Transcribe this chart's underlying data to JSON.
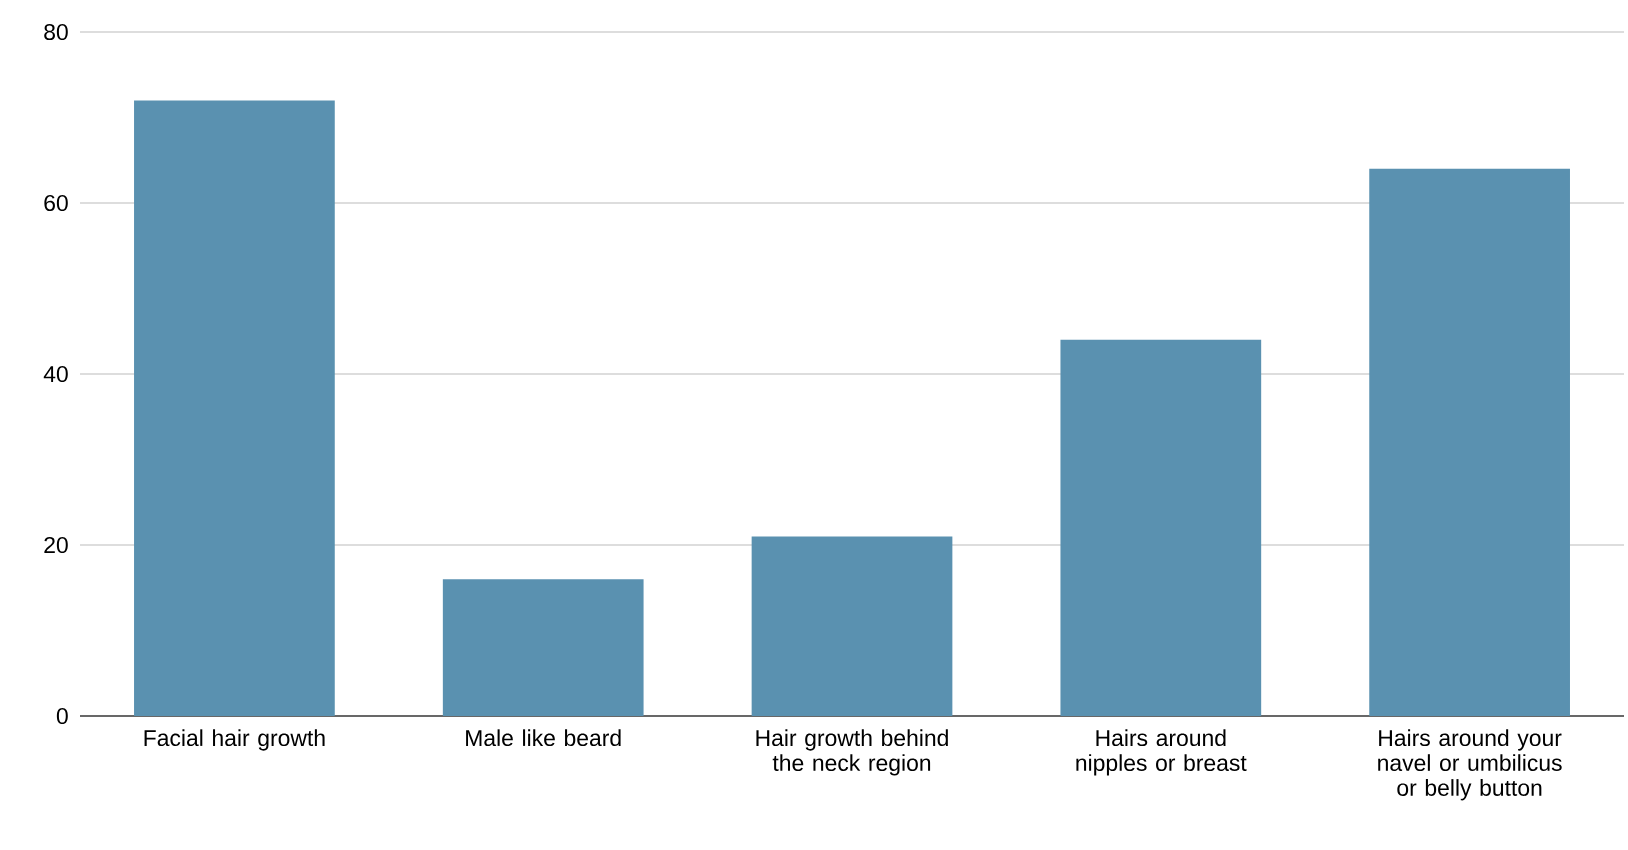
{
  "chart_data": {
    "type": "bar",
    "categories": [
      "Facial hair growth",
      "Male like beard",
      "Hair growth behind the neck region",
      "Hairs around nipples or breast",
      "Hairs around your navel or umbilicus or belly button"
    ],
    "values": [
      72,
      16,
      21,
      44,
      64
    ],
    "color": "#5a91b0",
    "ylim": [
      0,
      80
    ],
    "yticks": [
      0,
      20,
      40,
      60,
      80
    ],
    "grid": "y"
  }
}
